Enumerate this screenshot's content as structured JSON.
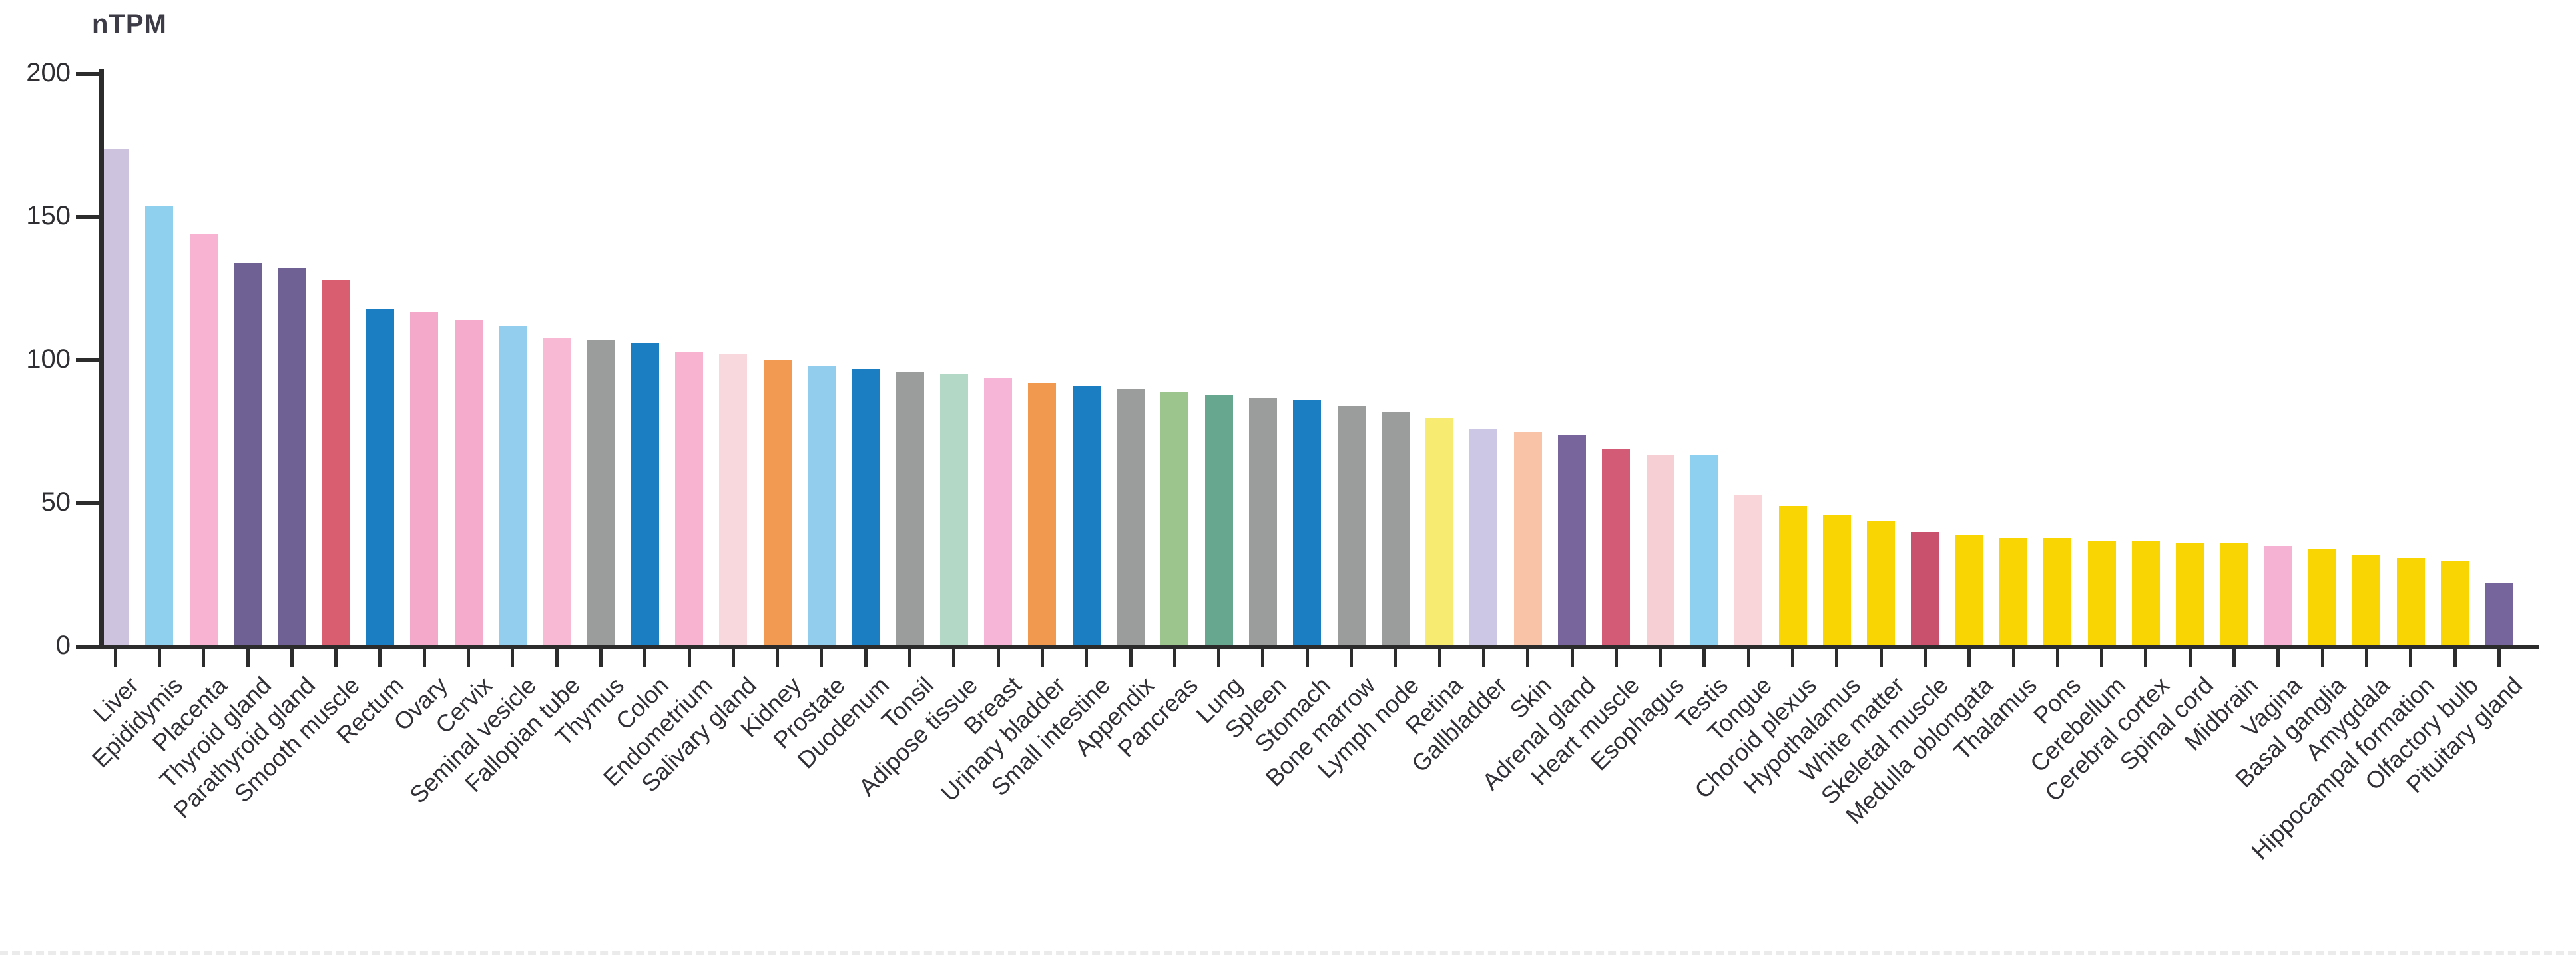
{
  "page": {
    "background": "#ffffff",
    "bottom_divider_color": "#ebebeb",
    "axis_color": "#2c2c2c",
    "text_color": "#303036"
  },
  "chart_data": {
    "type": "bar",
    "title": "nTPM",
    "ylabel": "nTPM",
    "xlabel": "",
    "ylim": [
      0,
      200
    ],
    "yticks": [
      0,
      50,
      100,
      150,
      200
    ],
    "grid": false,
    "legend_position": "none",
    "categories": [
      "Liver",
      "Epididymis",
      "Placenta",
      "Thyroid gland",
      "Parathyroid gland",
      "Smooth muscle",
      "Rectum",
      "Ovary",
      "Cervix",
      "Seminal vesicle",
      "Fallopian tube",
      "Thymus",
      "Colon",
      "Endometrium",
      "Salivary gland",
      "Kidney",
      "Prostate",
      "Duodenum",
      "Tonsil",
      "Adipose tissue",
      "Breast",
      "Urinary bladder",
      "Small intestine",
      "Appendix",
      "Pancreas",
      "Lung",
      "Spleen",
      "Stomach",
      "Bone marrow",
      "Lymph node",
      "Retina",
      "Gallbladder",
      "Skin",
      "Adrenal gland",
      "Heart muscle",
      "Esophagus",
      "Testis",
      "Tongue",
      "Choroid plexus",
      "Hypothalamus",
      "White matter",
      "Skeletal muscle",
      "Medulla oblongata",
      "Thalamus",
      "Pons",
      "Cerebellum",
      "Cerebral cortex",
      "Spinal cord",
      "Midbrain",
      "Vagina",
      "Basal ganglia",
      "Amygdala",
      "Hippocampal formation",
      "Olfactory bulb",
      "Pituitary gland"
    ],
    "values": [
      174,
      154,
      144,
      134,
      132,
      128,
      118,
      117,
      114,
      112,
      108,
      107,
      106,
      103,
      102,
      100,
      98,
      97,
      96,
      95,
      94,
      92,
      91,
      90,
      89,
      88,
      87,
      86,
      84,
      82,
      80,
      76,
      75,
      74,
      69,
      67,
      67,
      53,
      49,
      46,
      44,
      40,
      39,
      38,
      38,
      37,
      37,
      36,
      36,
      35,
      34,
      32,
      31,
      30,
      22
    ],
    "colors": [
      "#CDC3DF",
      "#8FD0EE",
      "#F7B3D1",
      "#6F6194",
      "#6F6194",
      "#D95F70",
      "#1B7EC2",
      "#F5A9CA",
      "#F5ABCB",
      "#93CEEE",
      "#F8B9D4",
      "#9B9D9C",
      "#1B7EC2",
      "#F8B3D0",
      "#F8D8DC",
      "#F29A52",
      "#92CDEE",
      "#1B7EC2",
      "#9B9D9C",
      "#B3D8C5",
      "#F6B5D6",
      "#F1994F",
      "#1B7EC2",
      "#9B9D9C",
      "#9CC48D",
      "#68A78F",
      "#9B9D9C",
      "#1B7EC2",
      "#9B9D9C",
      "#9B9D9C",
      "#F8EB72",
      "#CCC7E4",
      "#F8C3A6",
      "#77659B",
      "#D35B76",
      "#F6CFD5",
      "#8DD0F0",
      "#F9D5DA",
      "#F9D503",
      "#F9D503",
      "#F9D503",
      "#C9516E",
      "#F9D503",
      "#F9D503",
      "#F9D503",
      "#F9D503",
      "#F9D503",
      "#F9D503",
      "#F9D503",
      "#F6B2D2",
      "#F9D503",
      "#F9D503",
      "#F9D503",
      "#F9D503",
      "#76659C"
    ]
  }
}
